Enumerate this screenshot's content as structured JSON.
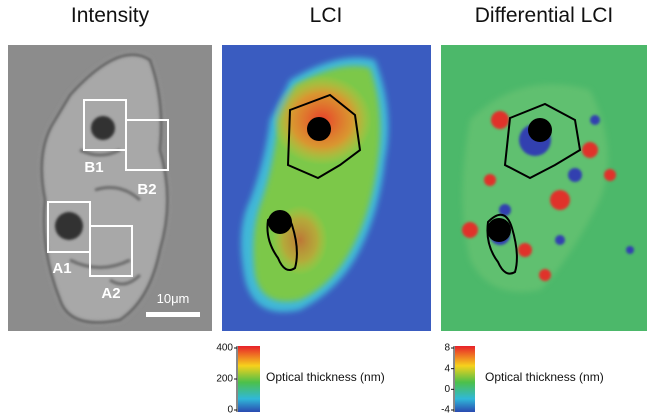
{
  "panels": [
    {
      "title": "Intensity",
      "labels": [
        "B1",
        "B2",
        "A1",
        "A2"
      ],
      "scale_bar": "10μm"
    },
    {
      "title": "LCI"
    },
    {
      "title": "Differential LCI"
    }
  ],
  "colorbars": [
    {
      "ticks": [
        400,
        200,
        0
      ],
      "label": "Optical thickness (nm)"
    },
    {
      "ticks": [
        8,
        4,
        0,
        -4
      ],
      "label": "Optical thickness (nm)"
    }
  ]
}
